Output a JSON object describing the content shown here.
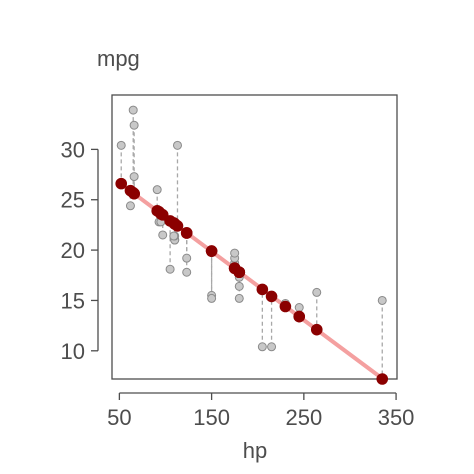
{
  "chart_data": {
    "type": "scatter",
    "xlabel": "hp",
    "ylabel": "mpg",
    "xlim": [
      42,
      351
    ],
    "ylim": [
      7.2,
      35.4
    ],
    "x_ticks": [
      50,
      150,
      250,
      350
    ],
    "y_ticks": [
      10,
      15,
      20,
      25,
      30
    ],
    "grid": false,
    "legend": "none",
    "colors": {
      "observed": "#c8c8c8",
      "observed_stroke": "#8a8a8a",
      "fitted": "#8b0000",
      "line": "#f4a0a0",
      "residual": "#a8a8a8",
      "axis": "#4d4d4d"
    },
    "fit_line": {
      "intercept": 30.1,
      "slope": -0.0682
    },
    "points": [
      {
        "hp": 110,
        "observed": 21.0,
        "fitted": 22.6
      },
      {
        "hp": 110,
        "observed": 21.0,
        "fitted": 22.6
      },
      {
        "hp": 93,
        "observed": 22.8,
        "fitted": 23.8
      },
      {
        "hp": 110,
        "observed": 21.4,
        "fitted": 22.6
      },
      {
        "hp": 175,
        "observed": 18.7,
        "fitted": 18.2
      },
      {
        "hp": 105,
        "observed": 18.1,
        "fitted": 22.9
      },
      {
        "hp": 245,
        "observed": 14.3,
        "fitted": 13.4
      },
      {
        "hp": 62,
        "observed": 24.4,
        "fitted": 25.9
      },
      {
        "hp": 95,
        "observed": 22.8,
        "fitted": 23.6
      },
      {
        "hp": 123,
        "observed": 19.2,
        "fitted": 21.7
      },
      {
        "hp": 123,
        "observed": 17.8,
        "fitted": 21.7
      },
      {
        "hp": 180,
        "observed": 16.4,
        "fitted": 17.8
      },
      {
        "hp": 180,
        "observed": 17.3,
        "fitted": 17.8
      },
      {
        "hp": 180,
        "observed": 15.2,
        "fitted": 17.8
      },
      {
        "hp": 205,
        "observed": 10.4,
        "fitted": 16.1
      },
      {
        "hp": 215,
        "observed": 10.4,
        "fitted": 15.4
      },
      {
        "hp": 230,
        "observed": 14.7,
        "fitted": 14.4
      },
      {
        "hp": 66,
        "observed": 32.4,
        "fitted": 25.6
      },
      {
        "hp": 52,
        "observed": 30.4,
        "fitted": 26.6
      },
      {
        "hp": 65,
        "observed": 33.9,
        "fitted": 25.7
      },
      {
        "hp": 97,
        "observed": 21.5,
        "fitted": 23.5
      },
      {
        "hp": 150,
        "observed": 15.5,
        "fitted": 19.9
      },
      {
        "hp": 150,
        "observed": 15.2,
        "fitted": 19.9
      },
      {
        "hp": 245,
        "observed": 13.3,
        "fitted": 13.4
      },
      {
        "hp": 175,
        "observed": 19.2,
        "fitted": 18.2
      },
      {
        "hp": 66,
        "observed": 27.3,
        "fitted": 25.6
      },
      {
        "hp": 91,
        "observed": 26.0,
        "fitted": 23.9
      },
      {
        "hp": 113,
        "observed": 30.4,
        "fitted": 22.4
      },
      {
        "hp": 264,
        "observed": 15.8,
        "fitted": 12.1
      },
      {
        "hp": 175,
        "observed": 19.7,
        "fitted": 18.2
      },
      {
        "hp": 335,
        "observed": 15.0,
        "fitted": 7.2
      },
      {
        "hp": 109,
        "observed": 21.4,
        "fitted": 22.7
      }
    ]
  }
}
